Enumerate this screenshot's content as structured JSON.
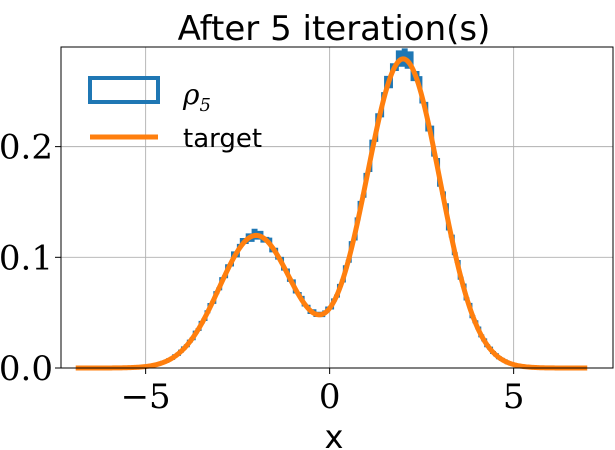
{
  "chart_data": {
    "type": "area",
    "title": "After 5 iteration(s)",
    "xlabel": "x",
    "ylabel": "",
    "xlim": [
      -7.3,
      7.7
    ],
    "ylim": [
      0,
      0.29
    ],
    "xticks": [
      -5,
      0,
      5
    ],
    "xtick_labels": [
      "−5",
      "0",
      "5"
    ],
    "yticks": [
      0.0,
      0.1,
      0.2
    ],
    "ytick_labels": [
      "0.0",
      "0.1",
      "0.2"
    ],
    "grid": true,
    "legend_position": "top-left",
    "legend": {
      "rho_symbol": "ρ",
      "rho_subscript": "5",
      "target_label": "target"
    },
    "colors": {
      "histogram": "#1f77b4",
      "target": "#ff7f0e"
    },
    "mixture": {
      "components": [
        {
          "weight": 0.3,
          "mean": -2.0,
          "std": 1.0
        },
        {
          "weight": 0.7,
          "mean": 2.0,
          "std": 1.0
        }
      ]
    },
    "series": [
      {
        "name": "target",
        "kind": "line",
        "x_range": [
          -6.9,
          7.0
        ]
      },
      {
        "name": "ρ₅",
        "kind": "step-histogram",
        "x_range": [
          -6.0,
          6.8
        ],
        "bin_width": 0.08,
        "relative_deviation": [
          0.03,
          -0.02,
          0.04,
          -0.03,
          0.02,
          0.035,
          -0.015,
          0.025,
          -0.03,
          0.04,
          -0.02,
          0.03,
          -0.025,
          0.015,
          0.035,
          -0.03,
          0.02,
          -0.015,
          0.03,
          -0.02
        ]
      }
    ]
  }
}
